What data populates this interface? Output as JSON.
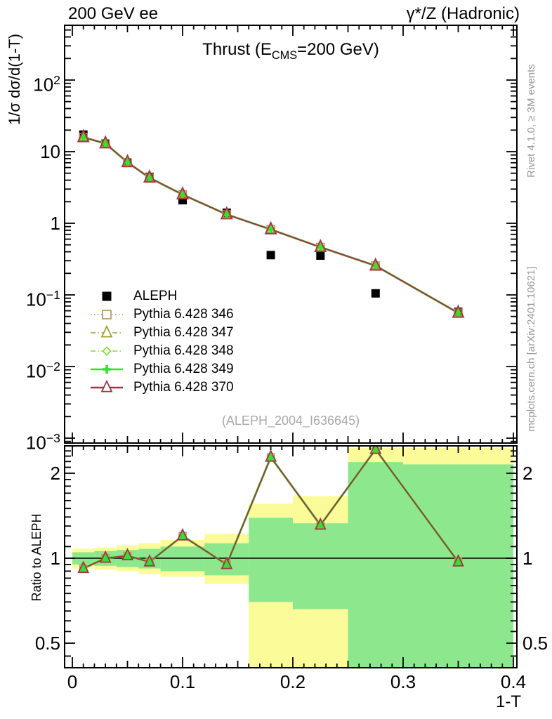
{
  "header": {
    "left": "200 GeV ee",
    "right": "γ*/Z (Hadronic)"
  },
  "title": {
    "prefix": "Thrust (E",
    "sub": "CMS",
    "suffix": "=200 GeV)"
  },
  "watermark": "(ALEPH_2004_I636645)",
  "side_notes": {
    "top_right": "Rivet 4.1.0, ≥ 3M events",
    "bottom_right": "mcplots.cern.ch [arXiv:2401.10621]"
  },
  "chart_data": [
    {
      "id": "main",
      "type": "line",
      "y_scale": "log",
      "title": "Thrust (E_CMS=200 GeV)",
      "ylabel": "1/σ dσ/d(1-T)",
      "xlabel": "1-T",
      "xlim": [
        -0.007,
        0.403
      ],
      "ylim": [
        0.00085,
        580
      ],
      "grid": false,
      "legend_position": "middle-left",
      "x": [
        0.01,
        0.03,
        0.05,
        0.07,
        0.1,
        0.14,
        0.18,
        0.225,
        0.275,
        0.35
      ],
      "bin_edges": [
        0,
        0.02,
        0.04,
        0.06,
        0.08,
        0.12,
        0.16,
        0.2,
        0.25,
        0.3,
        0.4
      ],
      "series": [
        {
          "name": "ALEPH",
          "type": "scatter",
          "marker": "filled-square",
          "color": "#000000",
          "values": [
            17.3,
            13.0,
            6.95,
            4.45,
            2.1,
            1.4,
            0.36,
            0.354,
            0.105,
            0.058
          ]
        },
        {
          "name": "Pythia 6.428 346",
          "type": "line",
          "linestyle": "dotted",
          "marker": "open-square",
          "color": "#b3914f",
          "values": [
            15.9,
            13.0,
            7.1,
            4.32,
            2.52,
            1.33,
            0.82,
            0.464,
            0.255,
            0.056
          ]
        },
        {
          "name": "Pythia 6.428 347",
          "type": "line",
          "linestyle": "dashdot",
          "marker": "open-triangle",
          "color": "#a2a12e",
          "values": [
            15.9,
            13.0,
            7.1,
            4.32,
            2.52,
            1.33,
            0.82,
            0.464,
            0.255,
            0.056
          ]
        },
        {
          "name": "Pythia 6.428 348",
          "type": "line",
          "linestyle": "dashdot",
          "marker": "open-diamond",
          "color": "#7edc2c",
          "values": [
            15.9,
            13.0,
            7.1,
            4.32,
            2.52,
            1.33,
            0.82,
            0.464,
            0.255,
            0.056
          ]
        },
        {
          "name": "Pythia 6.428 349",
          "type": "line",
          "linestyle": "solid",
          "marker": "plus-cross",
          "color": "#2fe32f",
          "values": [
            15.9,
            13.0,
            7.1,
            4.32,
            2.52,
            1.33,
            0.82,
            0.464,
            0.255,
            0.056
          ]
        },
        {
          "name": "Pythia 6.428 370",
          "type": "line",
          "linestyle": "solid",
          "marker": "open-triangle",
          "color": "#ab3145",
          "values": [
            15.9,
            13.0,
            7.1,
            4.32,
            2.52,
            1.33,
            0.82,
            0.464,
            0.255,
            0.056
          ]
        }
      ],
      "yticks": [
        {
          "v": 100,
          "base": "10",
          "exp": "2"
        },
        {
          "v": 10,
          "base": "10",
          "exp": ""
        },
        {
          "v": 1,
          "base": "1",
          "exp": ""
        },
        {
          "v": 0.1,
          "base": "10",
          "exp": "−1"
        },
        {
          "v": 0.01,
          "base": "10",
          "exp": "−2"
        },
        {
          "v": 0.001,
          "base": "10",
          "exp": "−3"
        }
      ],
      "xticks": [
        {
          "v": 0,
          "label": "0"
        },
        {
          "v": 0.1,
          "label": "0.1"
        },
        {
          "v": 0.2,
          "label": "0.2"
        },
        {
          "v": 0.3,
          "label": "0.3"
        },
        {
          "v": 0.4,
          "label": "0.4"
        }
      ]
    },
    {
      "id": "ratio",
      "type": "line",
      "y_scale": "log",
      "ylabel": "Ratio to ALEPH",
      "ylim": [
        0.41,
        2.5
      ],
      "reference_line": 1,
      "x": [
        0.01,
        0.03,
        0.05,
        0.07,
        0.1,
        0.14,
        0.18,
        0.225,
        0.275,
        0.35
      ],
      "values": [
        0.92,
        1.0,
        1.02,
        0.97,
        1.2,
        0.95,
        2.28,
        1.31,
        2.43,
        0.97
      ],
      "series_names": [
        "Pythia 6.428 346",
        "Pythia 6.428 347",
        "Pythia 6.428 348",
        "Pythia 6.428 349",
        "Pythia 6.428 370"
      ],
      "line_colors": {
        "green": "#2fe32f",
        "red": "#ab3145",
        "tan": "#b3914f"
      },
      "band_colors": {
        "outer": "#fbfb9a",
        "inner": "#8de88d"
      },
      "bands": [
        {
          "x0": 0.0,
          "x1": 0.02,
          "yellow": [
            0.92,
            1.08
          ],
          "green": [
            0.95,
            1.05
          ]
        },
        {
          "x0": 0.02,
          "x1": 0.04,
          "yellow": [
            0.91,
            1.09
          ],
          "green": [
            0.94,
            1.06
          ]
        },
        {
          "x0": 0.04,
          "x1": 0.06,
          "yellow": [
            0.9,
            1.11
          ],
          "green": [
            0.93,
            1.07
          ]
        },
        {
          "x0": 0.06,
          "x1": 0.08,
          "yellow": [
            0.88,
            1.13
          ],
          "green": [
            0.92,
            1.08
          ]
        },
        {
          "x0": 0.08,
          "x1": 0.12,
          "yellow": [
            0.86,
            1.16
          ],
          "green": [
            0.9,
            1.1
          ]
        },
        {
          "x0": 0.12,
          "x1": 0.16,
          "yellow": [
            0.81,
            1.22
          ],
          "green": [
            0.87,
            1.13
          ]
        },
        {
          "x0": 0.16,
          "x1": 0.2,
          "yellow": [
            0.35,
            1.56
          ],
          "green": [
            0.7,
            1.39
          ]
        },
        {
          "x0": 0.2,
          "x1": 0.25,
          "yellow": [
            0.35,
            1.66
          ],
          "green": [
            0.66,
            1.33
          ]
        },
        {
          "x0": 0.25,
          "x1": 0.3,
          "yellow": [
            0.35,
            2.46
          ],
          "green": [
            0.35,
            2.19
          ]
        },
        {
          "x0": 0.3,
          "x1": 0.4,
          "yellow": [
            0.35,
            2.46
          ],
          "green": [
            0.35,
            2.15
          ]
        }
      ],
      "yticks": [
        {
          "v": 2,
          "label": "2"
        },
        {
          "v": 1,
          "label": "1"
        },
        {
          "v": 0.5,
          "label": "0.5"
        }
      ]
    }
  ]
}
